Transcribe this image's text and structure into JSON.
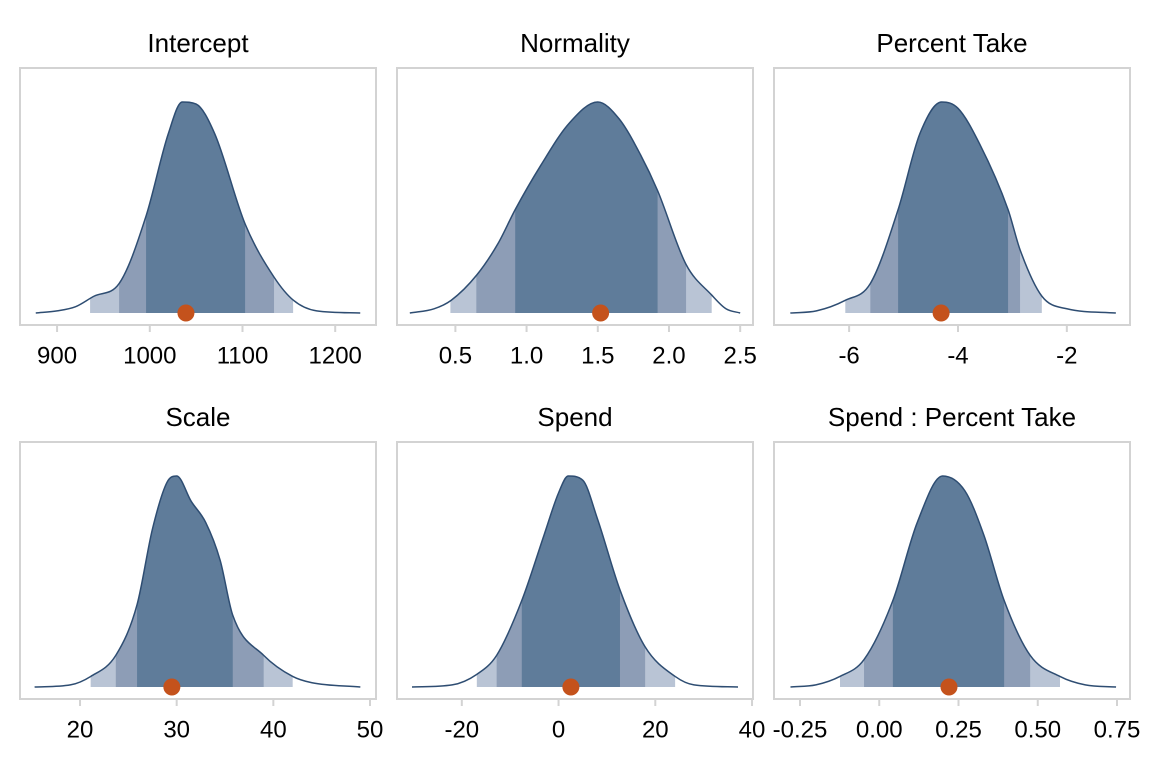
{
  "chart_data": [
    {
      "type": "density",
      "title": "Intercept",
      "x": [
        877,
        900,
        920,
        940,
        967,
        996,
        1020,
        1035,
        1050,
        1070,
        1103,
        1134,
        1155,
        1180,
        1227
      ],
      "values": [
        0,
        0.01,
        0.03,
        0.08,
        0.14,
        0.46,
        0.85,
        1.0,
        0.99,
        0.85,
        0.42,
        0.17,
        0.06,
        0.01,
        0
      ],
      "intervals": [
        [
          935.6,
          1154.6
        ],
        [
          966.9,
          1134
        ],
        [
          996,
          1102.8
        ]
      ],
      "point": 1039,
      "xlim": [
        860,
        1244
      ],
      "xticks": [
        900,
        1000,
        1100,
        1200
      ],
      "interval_colors": [
        "#b9c4d5",
        "#8d9db6",
        "#5f7c9a"
      ],
      "line_color": "#2e4d72",
      "point_color": "#c4521c"
    },
    {
      "type": "density",
      "title": "Normality",
      "x": [
        0.18,
        0.35,
        0.47,
        0.65,
        0.8,
        0.92,
        1.1,
        1.3,
        1.5,
        1.65,
        1.8,
        1.92,
        2.12,
        2.3,
        2.4,
        2.5
      ],
      "values": [
        0,
        0.02,
        0.06,
        0.18,
        0.33,
        0.49,
        0.7,
        0.9,
        1.0,
        0.92,
        0.75,
        0.58,
        0.23,
        0.085,
        0.02,
        0
      ],
      "intervals": [
        [
          0.465,
          2.3
        ],
        [
          0.647,
          2.12
        ],
        [
          0.92,
          1.92
        ]
      ],
      "point": 1.52,
      "xlim": [
        0.09,
        2.59
      ],
      "xticks": [
        0.5,
        {
          "value": 1,
          "label": "1.0"
        },
        1.5,
        {
          "value": 2,
          "label": "2.0"
        },
        2.5
      ],
      "interval_colors": [
        "#b9c4d5",
        "#8d9db6",
        "#5f7c9a"
      ],
      "line_color": "#2e4d72",
      "point_color": "#c4521c"
    },
    {
      "type": "density",
      "title": "Percent Take",
      "x": [
        -7.08,
        -6.6,
        -6.07,
        -5.61,
        -5.1,
        -4.7,
        -4.3,
        -4.0,
        -3.6,
        -3.08,
        -2.86,
        -2.46,
        -2.0,
        -1.1
      ],
      "values": [
        0,
        0.01,
        0.06,
        0.14,
        0.49,
        0.85,
        1.0,
        0.97,
        0.8,
        0.49,
        0.3,
        0.08,
        0.02,
        0
      ],
      "intervals": [
        [
          -6.07,
          -2.46
        ],
        [
          -5.61,
          -2.86
        ],
        [
          -5.1,
          -3.08
        ]
      ],
      "point": -4.31,
      "xlim": [
        -7.38,
        -0.84
      ],
      "xticks": [
        -6,
        -4,
        -2
      ],
      "interval_colors": [
        "#b9c4d5",
        "#8d9db6",
        "#5f7c9a"
      ],
      "line_color": "#2e4d72",
      "point_color": "#c4521c"
    },
    {
      "type": "density",
      "title": "Scale",
      "x": [
        15.3,
        19,
        21.1,
        23.7,
        25.9,
        27.5,
        29,
        30,
        31.5,
        33,
        34.5,
        35.8,
        39,
        42,
        44,
        49
      ],
      "values": [
        0,
        0.01,
        0.05,
        0.15,
        0.39,
        0.75,
        0.97,
        1.0,
        0.88,
        0.78,
        0.6,
        0.34,
        0.15,
        0.05,
        0.02,
        0
      ],
      "intervals": [
        [
          21.1,
          42
        ],
        [
          23.7,
          39
        ],
        [
          25.9,
          35.8
        ]
      ],
      "point": 29.5,
      "xlim": [
        13.79,
        50.62
      ],
      "xticks": [
        20,
        30,
        40,
        50
      ],
      "interval_colors": [
        "#b9c4d5",
        "#8d9db6",
        "#5f7c9a"
      ],
      "line_color": "#2e4d72",
      "point_color": "#c4521c"
    },
    {
      "type": "density",
      "title": "Spend",
      "x": [
        -30.3,
        -22,
        -16.9,
        -12.8,
        -7.6,
        -3,
        0,
        2,
        5,
        8,
        12.7,
        17.9,
        24.1,
        28,
        37.1
      ],
      "values": [
        0,
        0.01,
        0.06,
        0.15,
        0.41,
        0.72,
        0.92,
        1.0,
        0.98,
        0.8,
        0.46,
        0.19,
        0.05,
        0.01,
        0
      ],
      "intervals": [
        [
          -16.9,
          24.1
        ],
        [
          -12.8,
          17.9
        ],
        [
          -7.6,
          12.7
        ]
      ],
      "point": 2.55,
      "xlim": [
        -33.4,
        40.2
      ],
      "xticks": [
        -20,
        0,
        20,
        40
      ],
      "interval_colors": [
        "#b9c4d5",
        "#8d9db6",
        "#5f7c9a"
      ],
      "line_color": "#2e4d72",
      "point_color": "#c4521c"
    },
    {
      "type": "density",
      "title": "Spend : Percent Take",
      "x": [
        -0.28,
        -0.2,
        -0.124,
        -0.048,
        0.043,
        0.12,
        0.2,
        0.27,
        0.33,
        0.394,
        0.476,
        0.57,
        0.65,
        0.747
      ],
      "values": [
        0,
        0.01,
        0.05,
        0.13,
        0.41,
        0.78,
        1.0,
        0.93,
        0.72,
        0.41,
        0.15,
        0.05,
        0.01,
        0
      ],
      "intervals": [
        [
          -0.124,
          0.57
        ],
        [
          -0.048,
          0.476
        ],
        [
          0.043,
          0.394
        ]
      ],
      "point": 0.22,
      "xlim": [
        -0.332,
        0.791
      ],
      "xticks": [
        -0.25,
        {
          "value": 0,
          "label": "0.00"
        },
        0.25,
        {
          "value": 0.5,
          "label": "0.50"
        },
        0.75
      ],
      "interval_colors": [
        "#b9c4d5",
        "#8d9db6",
        "#5f7c9a"
      ],
      "line_color": "#2e4d72",
      "point_color": "#c4521c"
    }
  ]
}
